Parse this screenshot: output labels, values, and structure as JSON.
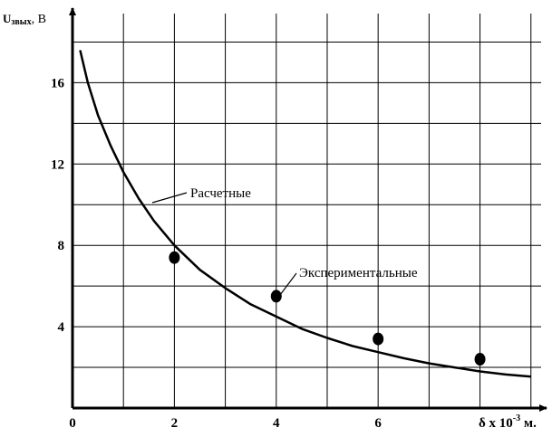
{
  "chart_data": {
    "type": "line",
    "title": "",
    "ylabel_main": "U",
    "ylabel_sub": "звых",
    "ylabel_unit": ", В",
    "xlabel_main": "δ x 10",
    "xlabel_exp": "-3",
    "xlabel_unit": " м.",
    "xlim": [
      0,
      9.2
    ],
    "ylim": [
      0,
      19.4
    ],
    "grid": true,
    "x_ticks": [
      0,
      2,
      4,
      6
    ],
    "y_ticks": [
      4,
      8,
      12,
      16
    ],
    "x_tick_labels": [
      "0",
      "2",
      "4",
      "6"
    ],
    "y_tick_labels": [
      "4",
      "8",
      "12",
      "16"
    ],
    "series": [
      {
        "name": "Расчетные",
        "style": "line",
        "color": "#000000",
        "x": [
          0.15,
          0.3,
          0.5,
          0.75,
          1.0,
          1.3,
          1.6,
          2.0,
          2.5,
          3.0,
          3.5,
          4.0,
          4.5,
          5.0,
          5.5,
          6.0,
          6.5,
          7.0,
          7.5,
          8.0,
          8.5,
          9.0
        ],
        "y": [
          17.6,
          16.0,
          14.4,
          12.9,
          11.6,
          10.3,
          9.2,
          8.0,
          6.8,
          5.9,
          5.1,
          4.5,
          3.9,
          3.45,
          3.05,
          2.75,
          2.45,
          2.2,
          2.0,
          1.8,
          1.65,
          1.55
        ]
      },
      {
        "name": "Экспериментальные",
        "style": "points",
        "color": "#000000",
        "x": [
          2.0,
          4.0,
          6.0,
          8.0
        ],
        "y": [
          7.4,
          5.5,
          3.4,
          2.4
        ]
      }
    ],
    "annotations": [
      {
        "text": "Расчетные",
        "series": 0
      },
      {
        "text": "Экспериментальные",
        "series": 1
      }
    ]
  }
}
